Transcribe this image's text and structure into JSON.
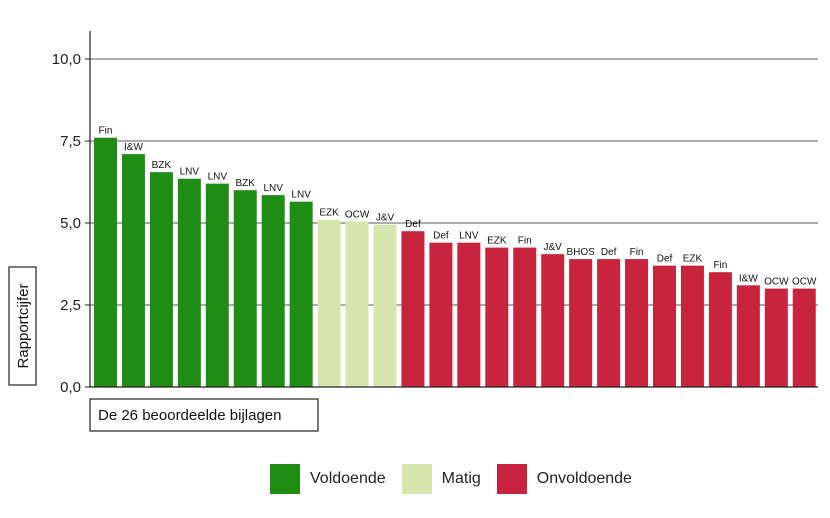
{
  "chart_data": {
    "type": "bar",
    "ylabel": "Rapportcijfer",
    "xlabel": "De 26 beoordeelde bijlagen",
    "ylim": [
      0,
      10
    ],
    "yticks": [
      "0,0",
      "2,5",
      "5,0",
      "7,5",
      "10,0"
    ],
    "grid": true,
    "legend_position": "bottom",
    "categories": [
      "Fin",
      "I&W",
      "BZK",
      "LNV",
      "LNV",
      "BZK",
      "LNV",
      "LNV",
      "EZK",
      "OCW",
      "J&V",
      "Def",
      "Def",
      "LNV",
      "EZK",
      "Fin",
      "J&V",
      "BHOS",
      "Def",
      "Fin",
      "Def",
      "EZK",
      "Fin",
      "I&W",
      "OCW",
      "OCW"
    ],
    "values": [
      7.6,
      7.1,
      6.55,
      6.35,
      6.2,
      6.0,
      5.85,
      5.65,
      5.1,
      5.05,
      4.95,
      4.75,
      4.4,
      4.4,
      4.25,
      4.25,
      4.05,
      3.9,
      3.9,
      3.9,
      3.7,
      3.7,
      3.5,
      3.1,
      3.0,
      3.0
    ],
    "groups": [
      "Voldoende",
      "Voldoende",
      "Voldoende",
      "Voldoende",
      "Voldoende",
      "Voldoende",
      "Voldoende",
      "Voldoende",
      "Matig",
      "Matig",
      "Matig",
      "Onvoldoende",
      "Onvoldoende",
      "Onvoldoende",
      "Onvoldoende",
      "Onvoldoende",
      "Onvoldoende",
      "Onvoldoende",
      "Onvoldoende",
      "Onvoldoende",
      "Onvoldoende",
      "Onvoldoende",
      "Onvoldoende",
      "Onvoldoende",
      "Onvoldoende",
      "Onvoldoende"
    ],
    "legend": [
      {
        "name": "Voldoende",
        "color": "#1f8c14"
      },
      {
        "name": "Matig",
        "color": "#d6e6ad"
      },
      {
        "name": "Onvoldoende",
        "color": "#c8243d"
      }
    ]
  }
}
